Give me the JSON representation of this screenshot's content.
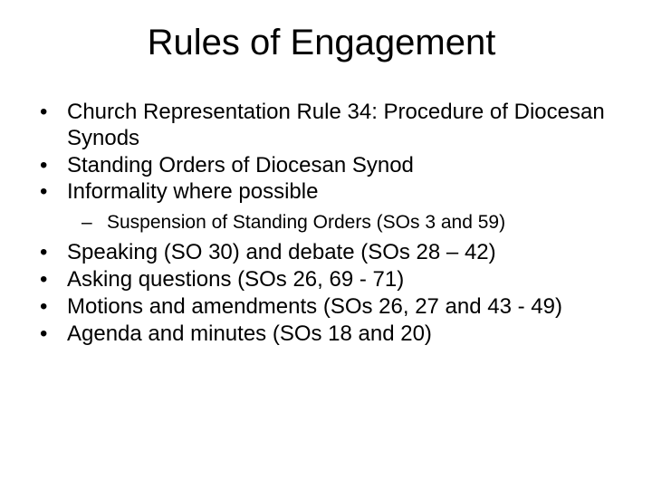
{
  "slide": {
    "title": "Rules of Engagement",
    "bullets": [
      {
        "text": "Church Representation Rule 34: Procedure of Diocesan Synods",
        "level": 1
      },
      {
        "text": "Standing Orders of Diocesan Synod",
        "level": 1
      },
      {
        "text": "Informality where possible",
        "level": 1
      },
      {
        "text": "Suspension of Standing Orders (SOs 3 and 59)",
        "level": 2
      },
      {
        "text": "Speaking (SO 30) and debate (SOs 28 – 42)",
        "level": 1
      },
      {
        "text": "Asking questions (SOs 26, 69 - 71)",
        "level": 1
      },
      {
        "text": "Motions and amendments (SOs 26, 27 and 43 - 49)",
        "level": 1
      },
      {
        "text": "Agenda and minutes (SOs 18 and 20)",
        "level": 1
      }
    ],
    "styling": {
      "background_color": "#ffffff",
      "text_color": "#000000",
      "title_fontsize": 40,
      "body_fontsize": 24,
      "sub_fontsize": 21,
      "font_family": "Arial"
    }
  }
}
